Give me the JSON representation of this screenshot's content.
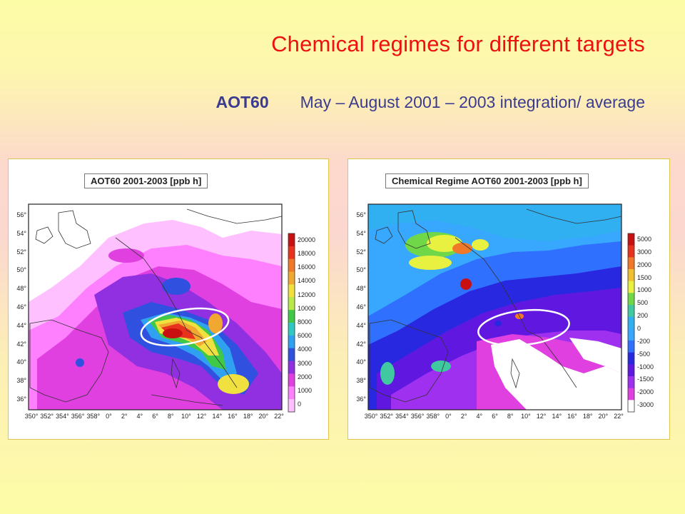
{
  "slide": {
    "title": "Chemical regimes for different targets",
    "subtitle_key": "AOT60",
    "subtitle_text": "May – August 2001 – 2003 integration/ average"
  },
  "maps": [
    {
      "title": "AOT60      2001-2003      [ppb h]",
      "colorbar": [
        "20000",
        "18000",
        "16000",
        "14000",
        "12000",
        "10000",
        "8000",
        "6000",
        "4000",
        "3000",
        "2000",
        "1000",
        "0"
      ],
      "colors": [
        "#c81010",
        "#e8321e",
        "#f07828",
        "#f0a830",
        "#f0e040",
        "#b8e84a",
        "#40c848",
        "#30c8c0",
        "#30a0f0",
        "#3050e0",
        "#9030e0",
        "#e040e0",
        "#ff80ff",
        "#ffc0ff"
      ]
    },
    {
      "title": "Chemical Regime AOT60 2001-2003 [ppb h]",
      "colorbar": [
        "5000",
        "3000",
        "2000",
        "1500",
        "1000",
        "500",
        "200",
        "0",
        "-200",
        "-500",
        "-1000",
        "-1500",
        "-2000",
        "-3000"
      ],
      "colors": [
        "#c81010",
        "#e8321e",
        "#f07828",
        "#f0c030",
        "#e8f040",
        "#70d848",
        "#40c8a0",
        "#30b0f0",
        "#38a8ff",
        "#3070ff",
        "#2828e0",
        "#6018e0",
        "#a030f0",
        "#e040e0",
        "#ffffff"
      ]
    }
  ],
  "latitudes": [
    "56°",
    "54°",
    "52°",
    "50°",
    "48°",
    "46°",
    "44°",
    "42°",
    "40°",
    "38°",
    "36°"
  ],
  "longitudes": [
    "350°",
    "352°",
    "354°",
    "356°",
    "358°",
    "0°",
    "2°",
    "4°",
    "6°",
    "8°",
    "10°",
    "12°",
    "14°",
    "16°",
    "18°",
    "20°",
    "22°"
  ]
}
